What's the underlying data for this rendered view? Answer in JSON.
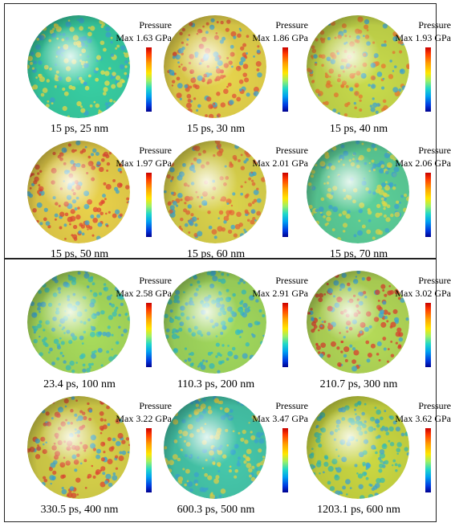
{
  "panels": [
    {
      "cells": [
        {
          "pressure_label": "Pressure",
          "max_label": "Max 1.63 GPa",
          "caption": "15 ps, 25 nm",
          "base_color": "#38cfa3",
          "spot_color": "#f2e14a"
        },
        {
          "pressure_label": "Pressure",
          "max_label": "Max 1.86 GPa",
          "caption": "15 ps, 30 nm",
          "base_color": "#e6d44c",
          "spot_color": "#e8553a"
        },
        {
          "pressure_label": "Pressure",
          "max_label": "Max 1.93 GPa",
          "caption": "15 ps, 40 nm",
          "base_color": "#c9dc4c",
          "spot_color": "#ef7a32"
        },
        {
          "pressure_label": "Pressure",
          "max_label": "Max 1.97 GPa",
          "caption": "15 ps, 50 nm",
          "base_color": "#ead24b",
          "spot_color": "#e44a34"
        },
        {
          "pressure_label": "Pressure",
          "max_label": "Max 2.01 GPa",
          "caption": "15 ps, 60 nm",
          "base_color": "#dcd44c",
          "spot_color": "#e9683a"
        },
        {
          "pressure_label": "Pressure",
          "max_label": "Max 2.06 GPa",
          "caption": "15 ps, 70 nm",
          "base_color": "#5cd09a",
          "spot_color": "#e3dc4a"
        }
      ]
    },
    {
      "cells": [
        {
          "pressure_label": "Pressure",
          "max_label": "Max 2.58 GPa",
          "caption": "23.4 ps, 100 nm",
          "base_color": "#a8dc5c",
          "spot_color": "#3cc7c0"
        },
        {
          "pressure_label": "Pressure",
          "max_label": "Max 2.91 GPa",
          "caption": "110.3 ps, 200 nm",
          "base_color": "#a2da5e",
          "spot_color": "#34c2c4"
        },
        {
          "pressure_label": "Pressure",
          "max_label": "Max 3.02 GPa",
          "caption": "210.7 ps, 300 nm",
          "base_color": "#b4da58",
          "spot_color": "#e04030"
        },
        {
          "pressure_label": "Pressure",
          "max_label": "Max 3.22 GPa",
          "caption": "330.5 ps, 400 nm",
          "base_color": "#d8d24a",
          "spot_color": "#e34a34"
        },
        {
          "pressure_label": "Pressure",
          "max_label": "Max 3.47 GPa",
          "caption": "600.3 ps, 500 nm",
          "base_color": "#46c9ac",
          "spot_color": "#e6d54a"
        },
        {
          "pressure_label": "Pressure",
          "max_label": "Max 3.62 GPa",
          "caption": "1203.1 ps, 600 nm",
          "base_color": "#cbd842",
          "spot_color": "#3cc3b4"
        }
      ]
    }
  ]
}
